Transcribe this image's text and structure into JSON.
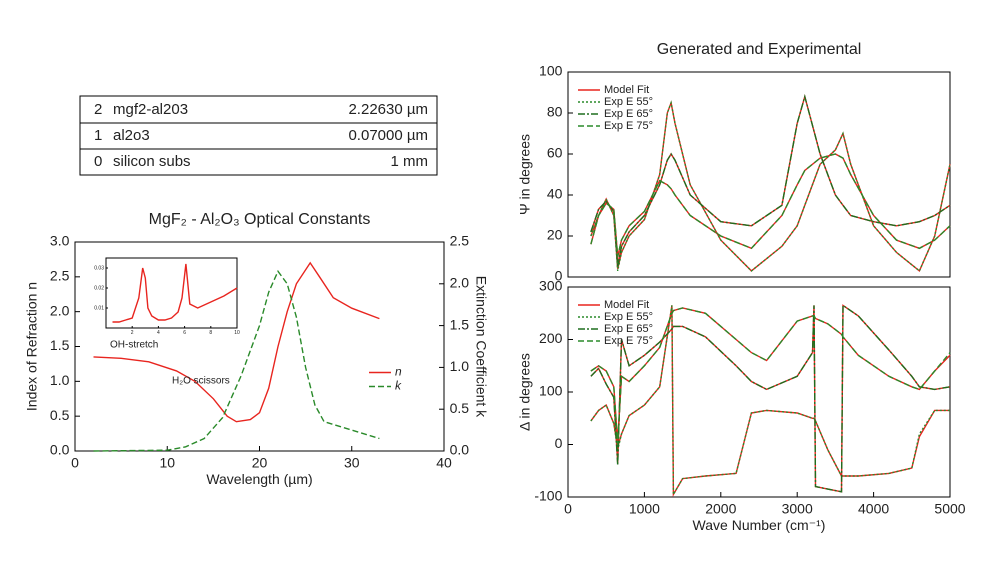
{
  "layer_table": {
    "rows": [
      [
        "2",
        "mgf2-al203",
        "2.22630 µm"
      ],
      [
        "1",
        "al2o3",
        "0.07000 µm"
      ],
      [
        "0",
        "silicon subs",
        "1 mm"
      ]
    ]
  },
  "chart_data": [
    {
      "type": "line",
      "title": "MgF₂ - Al₂O₃ Optical Constants",
      "x_label": "Wavelength (µm)",
      "y_label": "Index of Refraction n",
      "y2_label": "Extinction Coefficient k",
      "xlim": [
        0,
        40
      ],
      "xticks": [
        0,
        10,
        20,
        30,
        40
      ],
      "ylim": [
        0,
        3
      ],
      "yticks": [
        {
          "value": 0,
          "label": "0.0"
        },
        0.5,
        {
          "value": 1,
          "label": "1.0"
        },
        1.5,
        {
          "value": 2,
          "label": "2.0"
        },
        2.5,
        {
          "value": 3,
          "label": "3.0"
        }
      ],
      "y2lim": [
        0,
        2.5
      ],
      "y2ticks": [
        {
          "value": 0,
          "label": "0.0"
        },
        0.5,
        {
          "value": 1,
          "label": "1.0"
        },
        1.5,
        {
          "value": 2,
          "label": "2.0"
        },
        2.5
      ],
      "legend": "center right",
      "series": [
        {
          "name": "n",
          "color": "#e8251f",
          "line_style": "solid",
          "x": [
            2,
            5,
            8,
            11,
            13,
            15,
            16.5,
            17.5,
            19,
            20,
            21,
            22,
            23,
            24,
            25.5,
            26.5,
            28,
            30,
            33
          ],
          "values": [
            1.35,
            1.33,
            1.28,
            1.15,
            1.0,
            0.75,
            0.5,
            0.42,
            0.45,
            0.55,
            0.9,
            1.5,
            2.0,
            2.4,
            2.7,
            2.5,
            2.2,
            2.05,
            1.9
          ]
        },
        {
          "name": "k",
          "color": "#2a8a2a",
          "line_style": "dashed",
          "axis": "y2",
          "x": [
            2,
            10,
            12,
            14,
            16,
            18,
            20,
            21,
            22,
            23,
            24,
            25,
            26,
            27,
            30,
            33
          ],
          "values": [
            0,
            0.01,
            0.05,
            0.15,
            0.4,
            0.9,
            1.5,
            1.9,
            2.15,
            2.0,
            1.6,
            1.0,
            0.55,
            0.35,
            0.25,
            0.15
          ]
        }
      ]
    },
    {
      "type": "line",
      "annotations": [
        "OH-stretch",
        "H₂O scissors"
      ],
      "xlim": [
        0,
        10
      ],
      "xticks": [
        2,
        4,
        6,
        8,
        10
      ],
      "ylim": [
        0,
        0.035
      ],
      "yticks": [
        0.01,
        0.02,
        0.03
      ],
      "series": [
        {
          "color": "#e8251f",
          "line_style": "solid",
          "x": [
            0.5,
            1,
            1.5,
            2,
            2.5,
            2.8,
            3,
            3.2,
            3.5,
            4,
            4.5,
            5,
            5.5,
            5.8,
            6.1,
            6.4,
            7,
            8,
            9,
            10
          ],
          "values": [
            0.003,
            0.003,
            0.004,
            0.005,
            0.015,
            0.03,
            0.025,
            0.01,
            0.006,
            0.004,
            0.004,
            0.005,
            0.008,
            0.015,
            0.032,
            0.012,
            0.01,
            0.013,
            0.016,
            0.02
          ]
        }
      ]
    },
    {
      "type": "line",
      "title": "Generated and Experimental",
      "y_label": "Ψ in degrees",
      "xlim": [
        0,
        5000
      ],
      "ylim": [
        0,
        100
      ],
      "yticks": [
        0,
        20,
        40,
        60,
        80,
        100
      ],
      "legend": "upper left",
      "x": [
        300,
        400,
        500,
        600,
        650,
        700,
        800,
        1000,
        1200,
        1300,
        1350,
        1400,
        1600,
        2000,
        2400,
        2800,
        3000,
        3100,
        3300,
        3500,
        3600,
        3700,
        4000,
        4300,
        4600,
        4800,
        5000
      ],
      "series": [
        {
          "name": "Model Fit",
          "color": "#e8251f",
          "line_style": "solid",
          "x": [
            300,
            400,
            500,
            600,
            650,
            700,
            800,
            1000,
            1200,
            1300,
            1350,
            1400,
            1600,
            2000,
            2400,
            2800,
            3000,
            3100,
            3300,
            3500,
            3600,
            3700,
            4000,
            4300,
            4600,
            4800,
            5000,
            null,
            300,
            400,
            500,
            600,
            650,
            700,
            800,
            1000,
            1200,
            1300,
            1350,
            1400,
            1600,
            2000,
            2400,
            2800,
            3000,
            3100,
            3300,
            3500,
            3600,
            3700,
            4000,
            4300,
            4600,
            4800,
            5000,
            null,
            300,
            400,
            500,
            600,
            650,
            700,
            800,
            1000,
            1200,
            1300,
            1350,
            1400,
            1600,
            2000,
            2400,
            2800,
            3000,
            3100,
            3300,
            3500,
            3600,
            3700,
            4000,
            4300,
            4600,
            4800,
            5000
          ],
          "values": [
            20,
            30,
            38,
            30,
            4,
            12,
            20,
            28,
            50,
            80,
            85,
            75,
            45,
            18,
            3,
            15,
            25,
            35,
            55,
            62,
            70,
            55,
            25,
            12,
            3,
            20,
            55,
            null,
            22,
            33,
            37,
            32,
            6,
            15,
            22,
            30,
            45,
            57,
            60,
            57,
            40,
            27,
            25,
            35,
            75,
            88,
            60,
            40,
            35,
            30,
            27,
            25,
            27,
            30,
            35,
            null,
            16,
            30,
            36,
            33,
            10,
            18,
            25,
            32,
            47,
            45,
            43,
            40,
            30,
            20,
            14,
            30,
            45,
            52,
            58,
            60,
            58,
            50,
            30,
            18,
            14,
            18,
            25
          ]
        },
        {
          "name": "Exp E 55°",
          "color": "#2a8a2a",
          "line_style": "dotted",
          "values": [
            20,
            30,
            38,
            30,
            3,
            12,
            20,
            28,
            50,
            80,
            85,
            75,
            45,
            18,
            3,
            15,
            25,
            35,
            55,
            62,
            70,
            55,
            25,
            12,
            3,
            20,
            55
          ]
        },
        {
          "name": "Exp E 65°",
          "color": "#1f6e1f",
          "line_style": "dashdot",
          "values": [
            22,
            33,
            37,
            32,
            5,
            15,
            22,
            30,
            45,
            57,
            60,
            57,
            40,
            27,
            25,
            35,
            75,
            88,
            60,
            40,
            35,
            30,
            27,
            25,
            27,
            30,
            35
          ]
        },
        {
          "name": "Exp E 75°",
          "color": "#2a8a2a",
          "line_style": "dashed",
          "values": [
            16,
            30,
            36,
            33,
            10,
            18,
            25,
            32,
            47,
            45,
            43,
            40,
            30,
            20,
            14,
            30,
            45,
            52,
            58,
            60,
            58,
            50,
            30,
            18,
            14,
            18,
            25
          ]
        }
      ]
    },
    {
      "type": "line",
      "x_label": "Wave Number (cm⁻¹)",
      "y_label": "Δ in degrees",
      "xlim": [
        0,
        5000
      ],
      "xticks": [
        0,
        1000,
        2000,
        3000,
        4000,
        5000
      ],
      "ylim": [
        -100,
        300
      ],
      "yticks": [
        -100,
        0,
        100,
        200,
        300
      ],
      "legend": "upper left",
      "x": [
        300,
        400,
        500,
        600,
        650,
        700,
        800,
        1000,
        1200,
        1360,
        1380,
        1500,
        1800,
        2200,
        2400,
        2600,
        3000,
        3200,
        3220,
        3240,
        3400,
        3580,
        3600,
        3800,
        4200,
        4500,
        4600,
        4800,
        5000
      ],
      "series": [
        {
          "name": "Model Fit",
          "color": "#e8251f",
          "line_style": "solid",
          "x": [
            300,
            400,
            500,
            600,
            650,
            700,
            800,
            1000,
            1200,
            1360,
            1380,
            1500,
            1800,
            2200,
            2400,
            2600,
            3000,
            3200,
            3220,
            3240,
            3400,
            3580,
            3600,
            3800,
            4200,
            4500,
            4600,
            4800,
            5000,
            null,
            300,
            400,
            500,
            600,
            650,
            700,
            800,
            1000,
            1200,
            1360,
            1380,
            1500,
            1800,
            2200,
            2400,
            2600,
            3000,
            3200,
            3220,
            3240,
            3400,
            3580,
            3600,
            3800,
            4200,
            4500,
            4600,
            4800,
            5000,
            null,
            300,
            400,
            500,
            600,
            650,
            700,
            800,
            1000,
            1200,
            1360,
            1380,
            1500,
            1800,
            2200,
            2400,
            2600,
            3000,
            3200,
            3220,
            3240,
            3400,
            3580,
            3600,
            3800,
            4200,
            4500,
            4600,
            4800,
            5000
          ],
          "values": [
            45,
            65,
            75,
            40,
            -5,
            20,
            55,
            75,
            110,
            265,
            -95,
            -65,
            -60,
            -55,
            60,
            65,
            60,
            50,
            50,
            45,
            -10,
            -60,
            -60,
            -60,
            -55,
            -45,
            15,
            65,
            65,
            null,
            130,
            145,
            115,
            90,
            -35,
            200,
            150,
            170,
            195,
            220,
            225,
            225,
            205,
            150,
            120,
            105,
            130,
            175,
            265,
            -80,
            -85,
            -90,
            265,
            245,
            180,
            130,
            110,
            105,
            110,
            null,
            140,
            150,
            140,
            110,
            5,
            130,
            120,
            150,
            185,
            250,
            255,
            260,
            250,
            200,
            175,
            160,
            235,
            245,
            245,
            240,
            230,
            210,
            205,
            170,
            130,
            110,
            105,
            140,
            170
          ]
        },
        {
          "name": "Exp E 55°",
          "color": "#2a8a2a",
          "line_style": "dotted",
          "values": [
            45,
            65,
            75,
            40,
            -10,
            20,
            55,
            75,
            110,
            265,
            -95,
            -65,
            -60,
            -55,
            60,
            65,
            60,
            50,
            50,
            45,
            -10,
            -60,
            -60,
            -60,
            -55,
            -45,
            20,
            65,
            65
          ]
        },
        {
          "name": "Exp E 65°",
          "color": "#1f6e1f",
          "line_style": "dashdot",
          "values": [
            130,
            145,
            115,
            90,
            -40,
            200,
            150,
            170,
            195,
            220,
            225,
            225,
            205,
            150,
            120,
            105,
            130,
            175,
            265,
            -80,
            -85,
            -90,
            265,
            245,
            180,
            130,
            110,
            105,
            110
          ]
        },
        {
          "name": "Exp E 75°",
          "color": "#2a8a2a",
          "line_style": "dashed",
          "values": [
            140,
            150,
            140,
            110,
            0,
            130,
            120,
            150,
            185,
            250,
            255,
            260,
            250,
            200,
            175,
            160,
            235,
            245,
            245,
            240,
            230,
            210,
            205,
            170,
            130,
            110,
            105,
            140,
            175
          ]
        }
      ]
    }
  ]
}
